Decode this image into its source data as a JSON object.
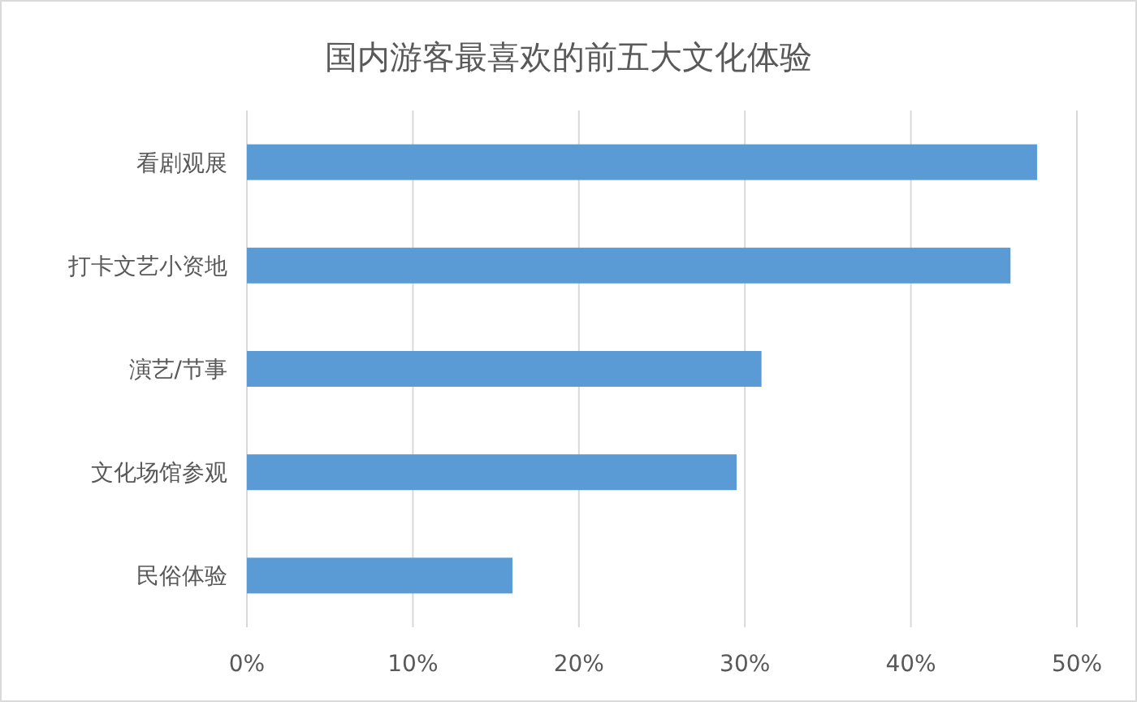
{
  "chart_data": {
    "type": "bar",
    "orientation": "horizontal",
    "title": "国内游客最喜欢的前五大文化体验",
    "categories": [
      "看剧观展",
      "打卡文艺小资地",
      "演艺/节事",
      "文化场馆参观",
      "民俗体验"
    ],
    "values": [
      47.6,
      46.0,
      31.0,
      29.5,
      16.0
    ],
    "color": "#5b9bd5",
    "xlim": [
      0,
      50
    ],
    "xticks": [
      {
        "value": 0,
        "label": "0%"
      },
      {
        "value": 10,
        "label": "10%"
      },
      {
        "value": 20,
        "label": "20%"
      },
      {
        "value": 30,
        "label": "30%"
      },
      {
        "value": 40,
        "label": "40%"
      },
      {
        "value": 50,
        "label": "50%"
      }
    ],
    "grid": "x"
  }
}
